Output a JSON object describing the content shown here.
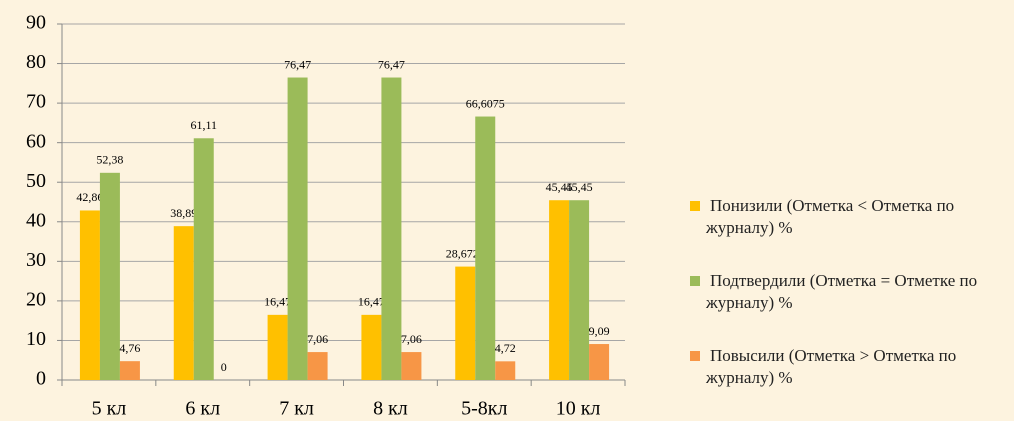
{
  "chart_data": {
    "type": "bar",
    "categories": [
      "5 кл",
      "6 кл",
      "7 кл",
      "8 кл",
      "5-8кл",
      "10 кл"
    ],
    "series": [
      {
        "name": "Понизили (Отметка < Отметка по журналу) %",
        "color": "#ffc000",
        "values": [
          42.86,
          38.89,
          16.47,
          16.47,
          28.6725,
          45.45
        ],
        "value_labels": [
          "42,86",
          "38,89",
          "16,47",
          "16,47",
          "28,6725",
          "45,45"
        ]
      },
      {
        "name": "Подтвердили (Отметка = Отметке по журналу) %",
        "color": "#9bbb59",
        "values": [
          52.38,
          61.11,
          76.47,
          76.47,
          66.6075,
          45.45
        ],
        "value_labels": [
          "52,38",
          "61,11",
          "76,47",
          "76,47",
          "66,6075",
          "45,45"
        ]
      },
      {
        "name": "Повысили (Отметка > Отметка по журналу) %",
        "color": "#f79646",
        "values": [
          4.76,
          0,
          7.06,
          7.06,
          4.72,
          9.09
        ],
        "value_labels": [
          "4,76",
          "0",
          "7,06",
          "7,06",
          "4,72",
          "9,09"
        ]
      }
    ],
    "ylim": [
      0,
      90
    ],
    "yticks": [
      0,
      10,
      20,
      30,
      40,
      50,
      60,
      70,
      80,
      90
    ],
    "grid": true,
    "legend": "right"
  }
}
